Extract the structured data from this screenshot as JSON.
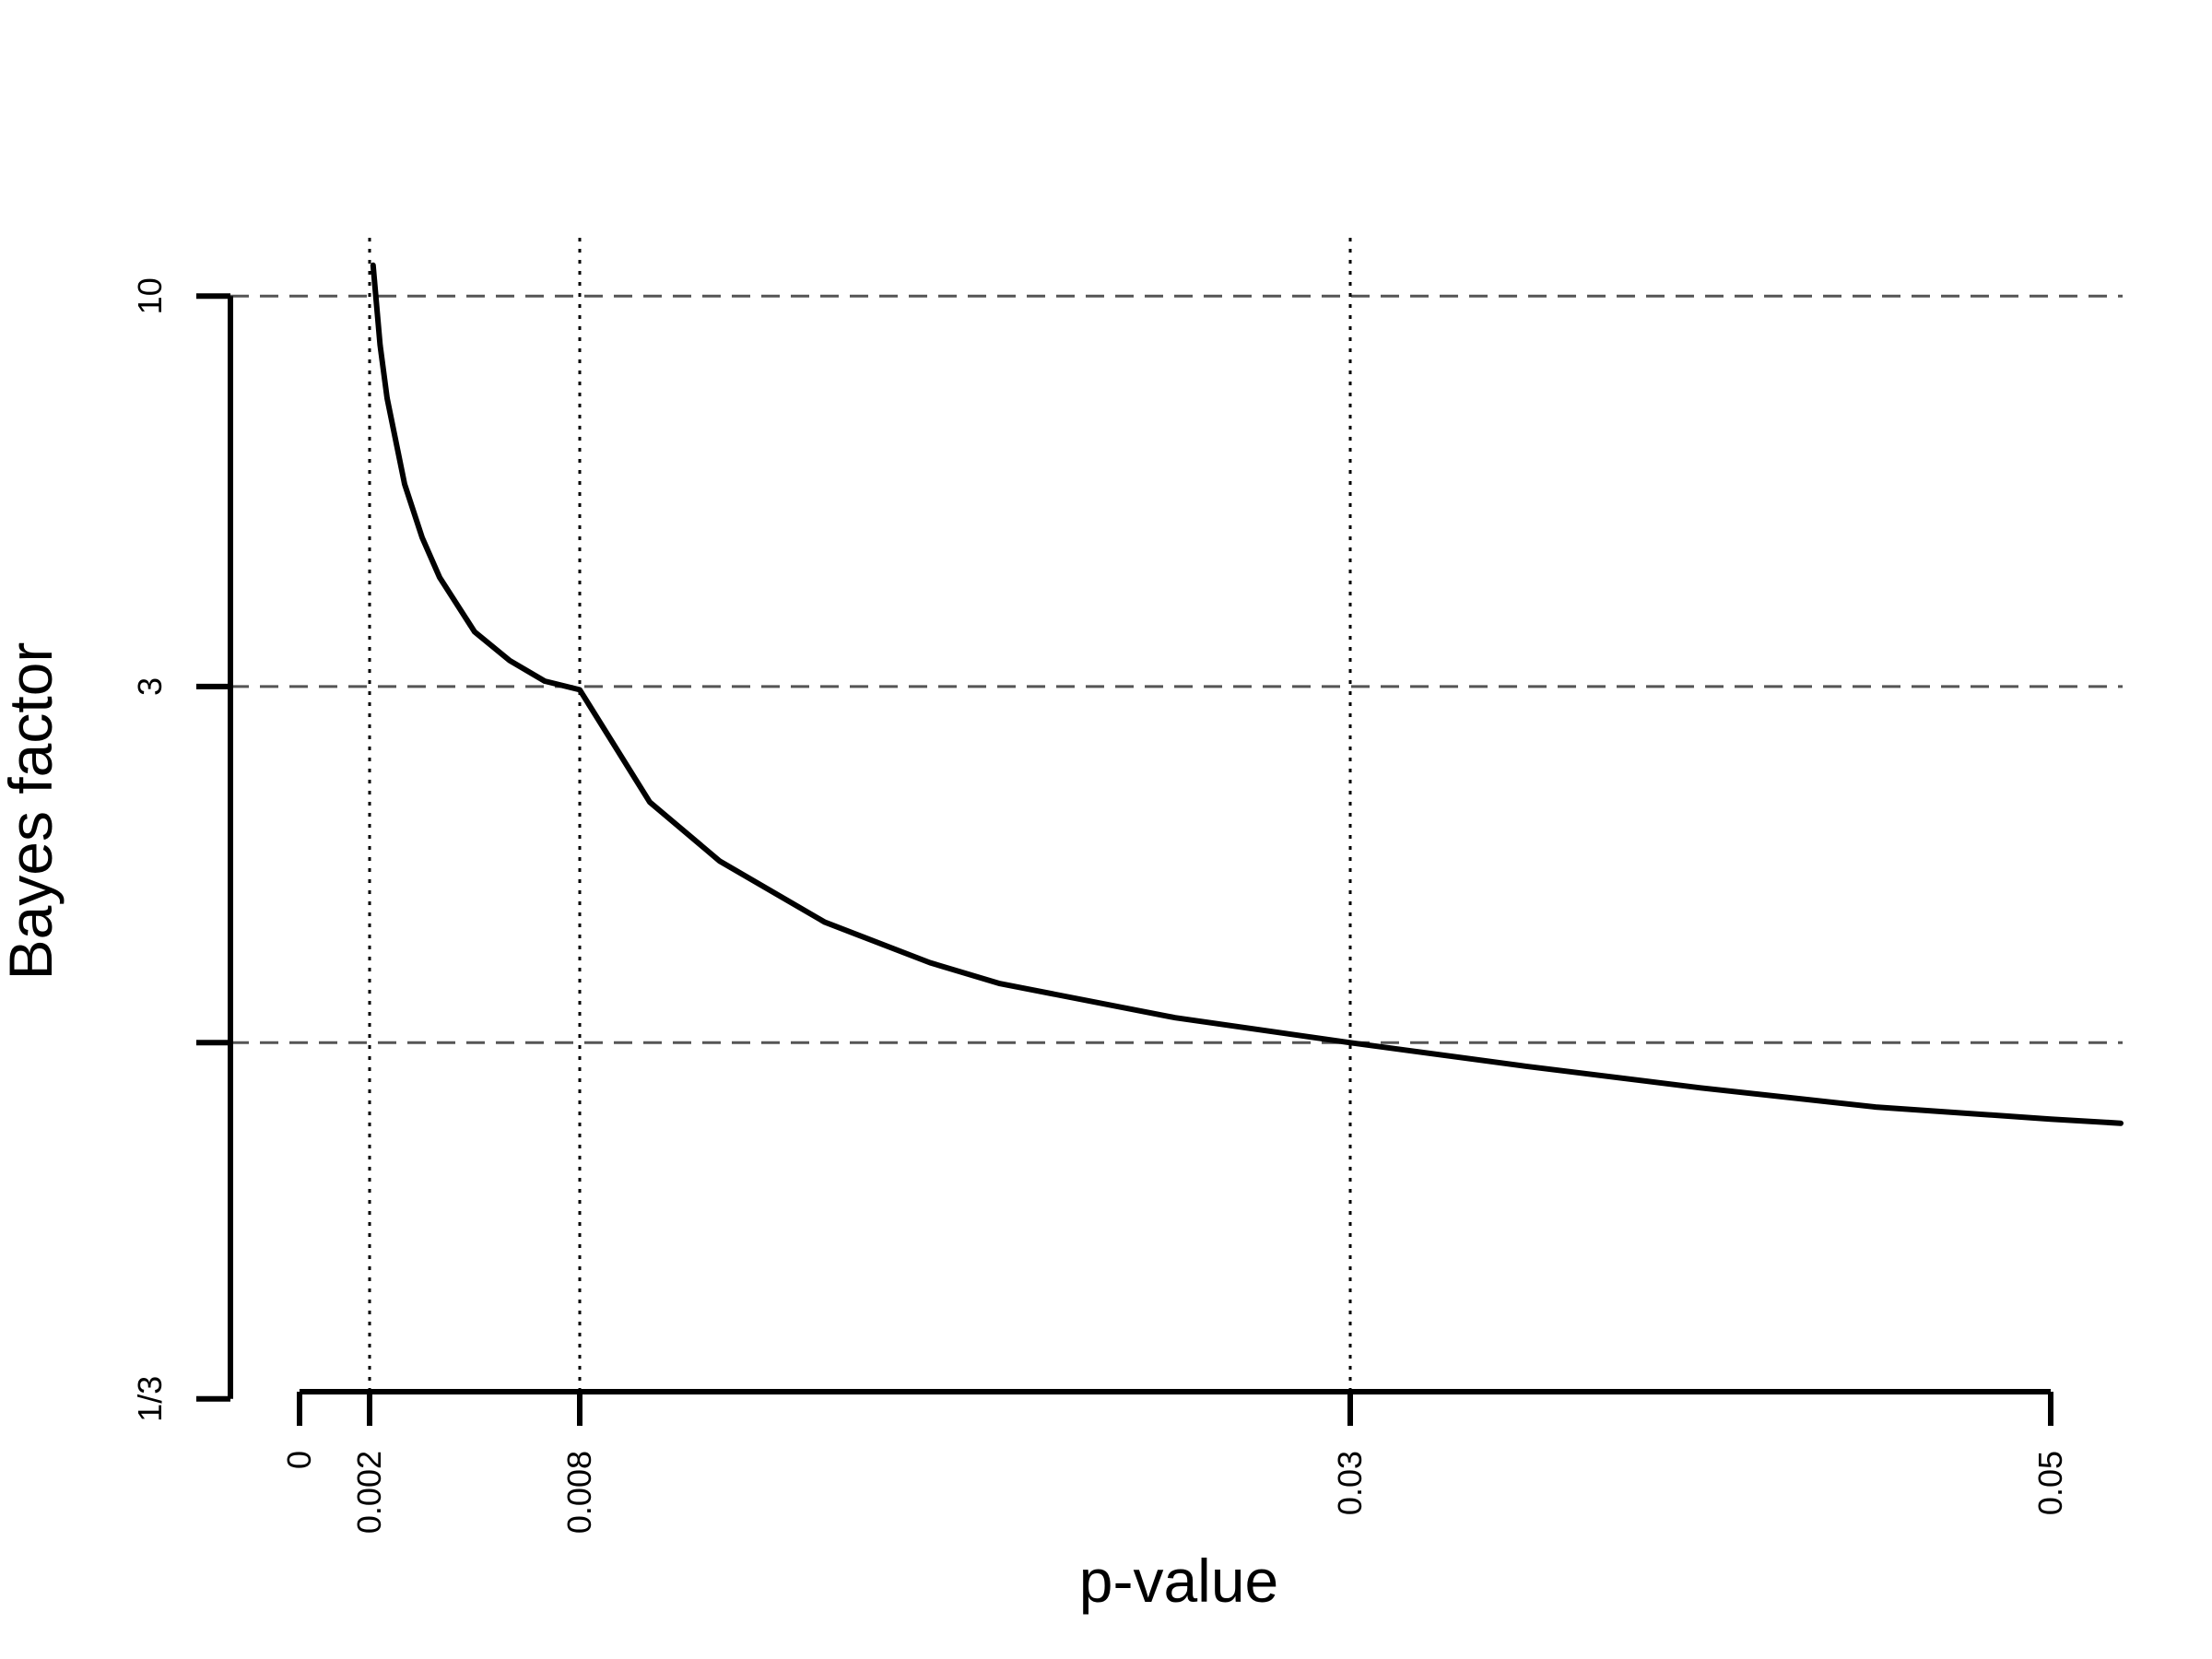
{
  "chart_data": {
    "type": "line",
    "xlabel": "p-value",
    "ylabel": "Bayes factor",
    "x_scale": "linear",
    "y_scale": "log",
    "xlim": [
      0,
      0.052
    ],
    "ylim": [
      0.333,
      10
    ],
    "x_ticks": [
      {
        "value": 0,
        "label": "0"
      },
      {
        "value": 0.002,
        "label": "0.002"
      },
      {
        "value": 0.008,
        "label": "0.008"
      },
      {
        "value": 0.03,
        "label": "0.03"
      },
      {
        "value": 0.05,
        "label": "0.05"
      }
    ],
    "y_ticks": [
      {
        "value": 0.3333,
        "label": "1/3"
      },
      {
        "value": 1,
        "label": ""
      },
      {
        "value": 3,
        "label": "3"
      },
      {
        "value": 10,
        "label": "10"
      }
    ],
    "reference_lines": {
      "horizontal_dashed": [
        10,
        3,
        1
      ],
      "vertical_dotted": [
        0.002,
        0.008,
        0.03
      ]
    },
    "series": [
      {
        "x": [
          0.0021,
          0.0023,
          0.0025,
          0.003,
          0.0035,
          0.004,
          0.005,
          0.006,
          0.007,
          0.008,
          0.01,
          0.012,
          0.015,
          0.018,
          0.02,
          0.025,
          0.03,
          0.035,
          0.04,
          0.045,
          0.05,
          0.052
        ],
        "y": [
          11.0,
          8.6,
          7.3,
          5.6,
          4.75,
          4.2,
          3.55,
          3.25,
          3.05,
          2.97,
          2.1,
          1.75,
          1.45,
          1.28,
          1.2,
          1.08,
          1.0,
          0.93,
          0.87,
          0.82,
          0.79,
          0.78
        ]
      }
    ],
    "grid": false,
    "legend": "none",
    "line_color": "#000000"
  }
}
